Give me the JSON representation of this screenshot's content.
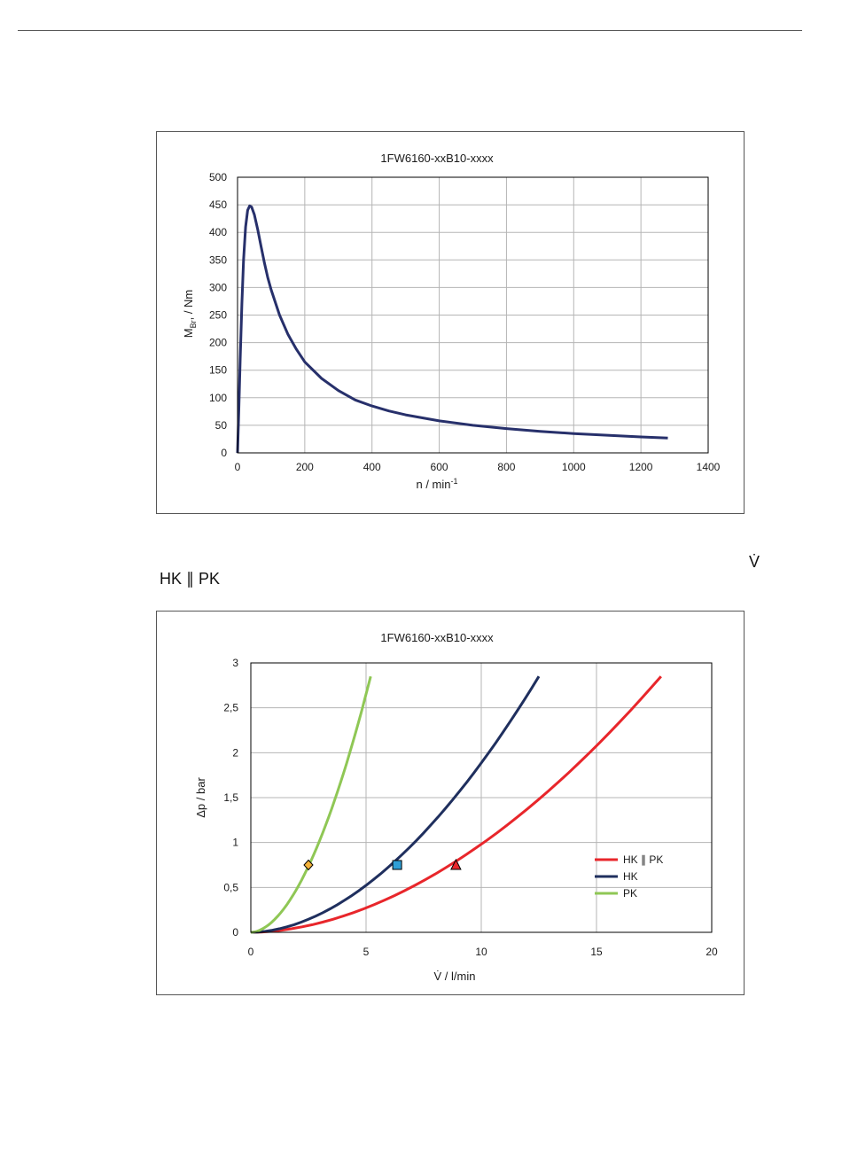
{
  "gap_text": {
    "vdot": "V̇",
    "hk_pk": "HK ∥ PK"
  },
  "chart_data": [
    {
      "type": "line",
      "title": "1FW6160-xxB10-xxxx",
      "xlabel": "n / min",
      "xlabel_superscript": "-1",
      "ylabel": "M",
      "ylabel_subscript": "Br",
      "ylabel_suffix": ", / Nm",
      "xlim": [
        0,
        1400
      ],
      "ylim": [
        0,
        500
      ],
      "xticks": [
        0,
        200,
        400,
        600,
        800,
        1000,
        1200,
        1400
      ],
      "yticks": [
        0,
        50,
        100,
        150,
        200,
        250,
        300,
        350,
        400,
        450,
        500
      ],
      "grid": true,
      "series": [
        {
          "color": "#27306b",
          "x": [
            0,
            4,
            8,
            13,
            18,
            24,
            30,
            36,
            42,
            50,
            60,
            70,
            80,
            90,
            100,
            125,
            150,
            175,
            200,
            250,
            300,
            350,
            400,
            450,
            500,
            600,
            700,
            800,
            900,
            1000,
            1100,
            1200,
            1280
          ],
          "y": [
            0,
            80,
            170,
            270,
            350,
            410,
            440,
            448,
            446,
            432,
            405,
            375,
            345,
            318,
            296,
            250,
            215,
            188,
            165,
            135,
            113,
            96,
            85,
            76,
            69,
            58,
            50,
            44,
            39,
            35,
            32,
            29,
            27
          ]
        }
      ]
    },
    {
      "type": "line",
      "title": "1FW6160-xxB10-xxxx",
      "xlabel": "V̇ / l/min",
      "ylabel": "Δp / bar",
      "xlim": [
        0,
        20
      ],
      "ylim": [
        0,
        3
      ],
      "xticks": [
        "0",
        "5",
        "10",
        "15",
        "20"
      ],
      "yticks": [
        "0",
        "0,5",
        "1",
        "1,5",
        "2",
        "2,5",
        "3"
      ],
      "grid": true,
      "legend_position": "lower-right",
      "series": [
        {
          "name": "HK ∥ PK",
          "color": "#e8262b",
          "exponent": 1.85,
          "x_end": 17.8,
          "y_end": 2.85,
          "marker": "triangle",
          "marker_x": 8.9,
          "marker_y": 0.75,
          "marker_fill": "#e8262b"
        },
        {
          "name": "HK",
          "color": "#1f2f5e",
          "exponent": 1.85,
          "x_end": 12.5,
          "y_end": 2.85,
          "marker": "square",
          "marker_x": 6.35,
          "marker_y": 0.75,
          "marker_fill": "#2e9fd6"
        },
        {
          "name": "PK",
          "color": "#8fc755",
          "exponent": 1.85,
          "x_end": 5.2,
          "y_end": 2.85,
          "marker": "diamond",
          "marker_x": 2.5,
          "marker_y": 0.75,
          "marker_fill": "#f4b23a"
        }
      ]
    }
  ]
}
